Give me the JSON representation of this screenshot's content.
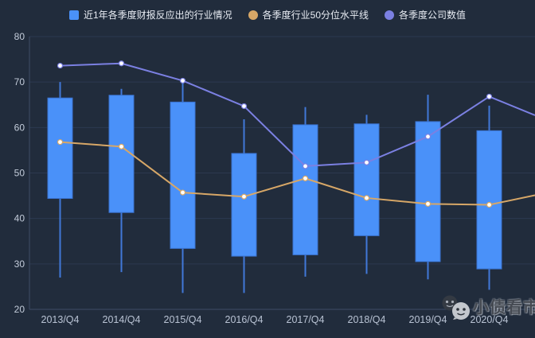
{
  "legend": [
    {
      "label": "近1年各季度财报反应出的行业情况",
      "swatch": "square",
      "color": "#4a91f9"
    },
    {
      "label": "各季度行业50分位水平线",
      "swatch": "circle",
      "color": "#d7a767"
    },
    {
      "label": "各季度公司数值",
      "swatch": "circle",
      "color": "#7b80e2"
    }
  ],
  "watermark": {
    "text": "小债看市",
    "icon": "wechat-icon"
  },
  "colors": {
    "background": "#212c3c",
    "grid_line": "#2c3950",
    "axis_line": "#3f4d66",
    "y_tick_label": "#c3ccda",
    "x_tick_label": "#b9c3d4",
    "candle_fill": "#4a91f9",
    "candle_border": "#3a72cf",
    "whisker": "#4178d8",
    "percentile_line": "#d7a767",
    "company_line": "#7b80e2",
    "marker_fill": "#ffffff"
  },
  "chart_data": {
    "type": "candlestick+line",
    "title": "",
    "categories": [
      "2013/Q4",
      "2014/Q4",
      "2015/Q4",
      "2016/Q4",
      "2017/Q4",
      "2018/Q4",
      "2019/Q4",
      "2020/Q4"
    ],
    "ylim": [
      20,
      80
    ],
    "yticks": [
      80,
      70,
      60,
      50,
      40,
      30,
      20
    ],
    "grid": true,
    "legend_position": "top",
    "series": [
      {
        "name": "近1年各季度财报反应出的行业情况",
        "type": "candlestick",
        "boxes": [
          {
            "min": 27.0,
            "q1": 44.4,
            "q3": 66.5,
            "max": 70.0
          },
          {
            "min": 28.2,
            "q1": 41.3,
            "q3": 67.1,
            "max": 68.5
          },
          {
            "min": 23.6,
            "q1": 33.4,
            "q3": 65.6,
            "max": 70.2
          },
          {
            "min": 23.6,
            "q1": 31.7,
            "q3": 54.3,
            "max": 61.8
          },
          {
            "min": 27.2,
            "q1": 32.0,
            "q3": 60.6,
            "max": 64.5
          },
          {
            "min": 27.8,
            "q1": 36.2,
            "q3": 60.8,
            "max": 62.8
          },
          {
            "min": 26.6,
            "q1": 30.5,
            "q3": 61.3,
            "max": 67.2
          },
          {
            "min": 24.3,
            "q1": 28.9,
            "q3": 59.3,
            "max": 64.8
          }
        ]
      },
      {
        "name": "各季度行业50分位水平线",
        "type": "line",
        "values": [
          56.8,
          55.8,
          45.7,
          44.8,
          48.8,
          44.5,
          43.2,
          43.0
        ],
        "right_edge_value": 45.1
      },
      {
        "name": "各季度公司数值",
        "type": "line",
        "values": [
          73.6,
          74.1,
          70.3,
          64.7,
          51.5,
          52.3,
          58.0,
          66.8
        ],
        "right_edge_value": 62.7
      }
    ],
    "note_lines_extend_to_right_edge": true
  }
}
